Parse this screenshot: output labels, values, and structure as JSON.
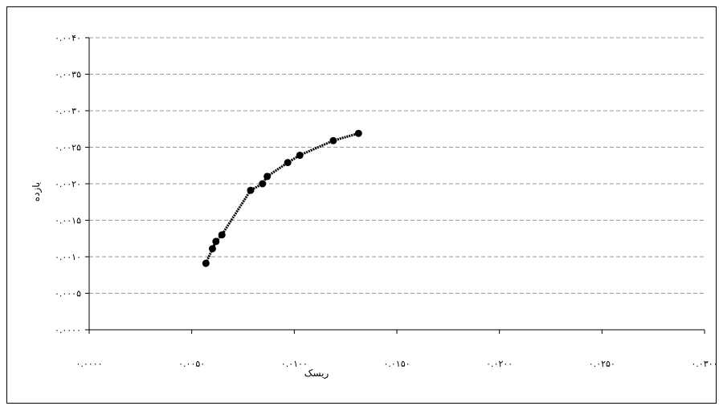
{
  "chart_data": {
    "type": "line",
    "title": "",
    "xlabel": "ریسک",
    "ylabel": "بازده",
    "xlim": [
      0,
      0.03
    ],
    "ylim": [
      0,
      0.004
    ],
    "x_ticks": [
      0,
      0.005,
      0.01,
      0.015,
      0.02,
      0.025,
      0.03
    ],
    "y_ticks": [
      0,
      0.0005,
      0.001,
      0.0015,
      0.002,
      0.0025,
      0.003,
      0.0035,
      0.004
    ],
    "x_tick_labels": [
      "۰.۰۰۰۰",
      "۰.۰۰۵۰",
      "۰.۰۱۰۰",
      "۰.۰۱۵۰",
      "۰.۰۲۰۰",
      "۰.۰۲۵۰",
      "۰.۰۳۰۰"
    ],
    "y_tick_labels": [
      "۰.۰۰۰۰",
      "۰.۰۰۰۵",
      "۰.۰۰۱۰",
      "۰.۰۰۱۵",
      "۰.۰۰۲۰",
      "۰.۰۰۲۵",
      "۰.۰۰۳۰",
      "۰.۰۰۳۵",
      "۰.۰۰۴۰"
    ],
    "grid": "horizontal-dashed",
    "legend": "none",
    "line_color": "#000000",
    "marker_color": "#000000",
    "series": [
      {
        "values": [
          {
            "x": 0.00569,
            "y": 0.00091
          },
          {
            "x": 0.00601,
            "y": 0.00111
          },
          {
            "x": 0.00618,
            "y": 0.00121
          },
          {
            "x": 0.00647,
            "y": 0.0013
          },
          {
            "x": 0.00787,
            "y": 0.00191
          },
          {
            "x": 0.00845,
            "y": 0.002
          },
          {
            "x": 0.00868,
            "y": 0.0021
          },
          {
            "x": 0.00968,
            "y": 0.00229
          },
          {
            "x": 0.01027,
            "y": 0.00239
          },
          {
            "x": 0.0119,
            "y": 0.00259
          },
          {
            "x": 0.01313,
            "y": 0.00269
          }
        ]
      }
    ]
  }
}
